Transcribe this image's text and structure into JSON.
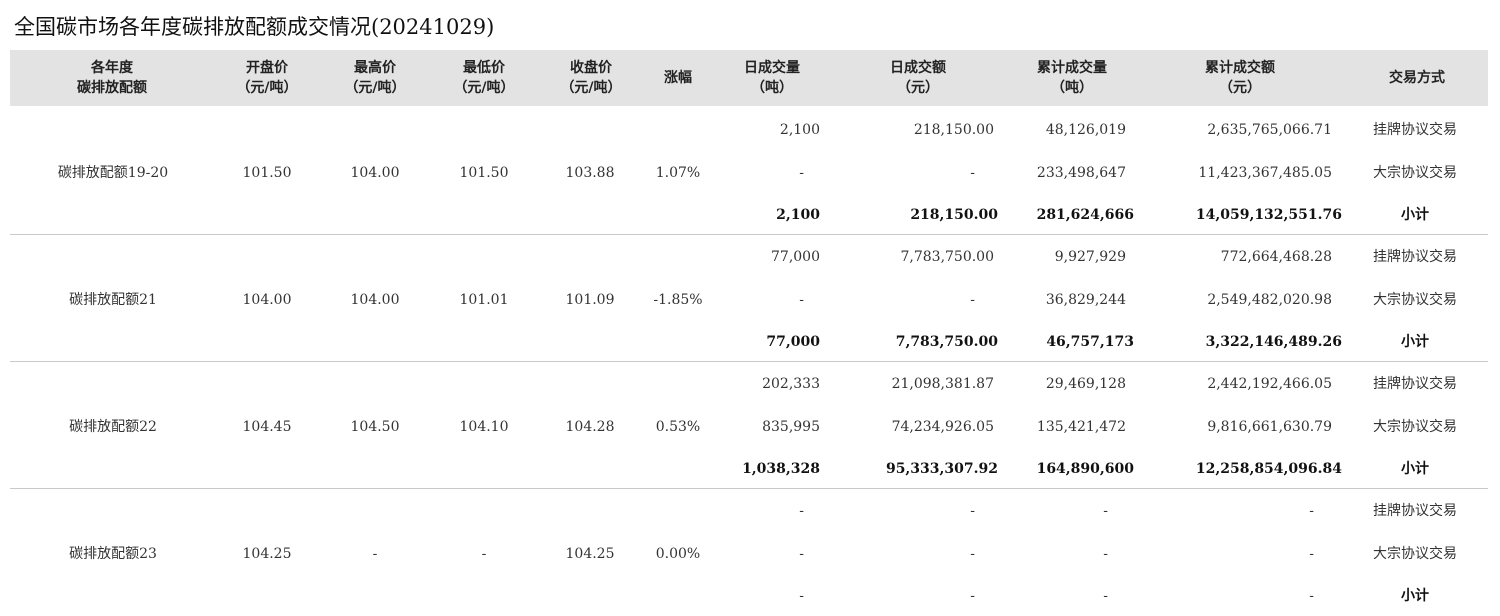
{
  "title": "全国碳市场各年度碳排放配额成交情况(20241029)",
  "columns": [
    {
      "line1": "各年度",
      "line2": "碳排放配额"
    },
    {
      "line1": "开盘价",
      "line2": "（元/吨）"
    },
    {
      "line1": "最高价",
      "line2": "（元/吨）"
    },
    {
      "line1": "最低价",
      "line2": "（元/吨）"
    },
    {
      "line1": "收盘价",
      "line2": "（元/吨）"
    },
    {
      "line1": "涨幅",
      "line2": ""
    },
    {
      "line1": "日成交量",
      "line2": "（吨）"
    },
    {
      "line1": "日成交额",
      "line2": "（元）"
    },
    {
      "line1": "累计成交量",
      "line2": "（吨）"
    },
    {
      "line1": "累计成交额",
      "line2": "（元）"
    },
    {
      "line1": "交易方式",
      "line2": ""
    }
  ],
  "groups": [
    {
      "name": "碳排放配额19-20",
      "open": "101.50",
      "high": "104.00",
      "low": "101.50",
      "close": "103.88",
      "change": "1.07%",
      "rows": [
        {
          "daily_volume": "2,100",
          "daily_amount": "218,150.00",
          "cum_volume": "48,126,019",
          "cum_amount": "2,635,765,066.71",
          "method": "挂牌协议交易"
        },
        {
          "daily_volume": "-",
          "daily_amount": "-",
          "cum_volume": "233,498,647",
          "cum_amount": "11,423,367,485.05",
          "method": "大宗协议交易"
        },
        {
          "daily_volume": "2,100",
          "daily_amount": "218,150.00",
          "cum_volume": "281,624,666",
          "cum_amount": "14,059,132,551.76",
          "method": "小计"
        }
      ]
    },
    {
      "name": "碳排放配额21",
      "open": "104.00",
      "high": "104.00",
      "low": "101.01",
      "close": "101.09",
      "change": "-1.85%",
      "rows": [
        {
          "daily_volume": "77,000",
          "daily_amount": "7,783,750.00",
          "cum_volume": "9,927,929",
          "cum_amount": "772,664,468.28",
          "method": "挂牌协议交易"
        },
        {
          "daily_volume": "-",
          "daily_amount": "-",
          "cum_volume": "36,829,244",
          "cum_amount": "2,549,482,020.98",
          "method": "大宗协议交易"
        },
        {
          "daily_volume": "77,000",
          "daily_amount": "7,783,750.00",
          "cum_volume": "46,757,173",
          "cum_amount": "3,322,146,489.26",
          "method": "小计"
        }
      ]
    },
    {
      "name": "碳排放配额22",
      "open": "104.45",
      "high": "104.50",
      "low": "104.10",
      "close": "104.28",
      "change": "0.53%",
      "rows": [
        {
          "daily_volume": "202,333",
          "daily_amount": "21,098,381.87",
          "cum_volume": "29,469,128",
          "cum_amount": "2,442,192,466.05",
          "method": "挂牌协议交易"
        },
        {
          "daily_volume": "835,995",
          "daily_amount": "74,234,926.05",
          "cum_volume": "135,421,472",
          "cum_amount": "9,816,661,630.79",
          "method": "大宗协议交易"
        },
        {
          "daily_volume": "1,038,328",
          "daily_amount": "95,333,307.92",
          "cum_volume": "164,890,600",
          "cum_amount": "12,258,854,096.84",
          "method": "小计"
        }
      ]
    },
    {
      "name": "碳排放配额23",
      "open": "104.25",
      "high": "-",
      "low": "-",
      "close": "104.25",
      "change": "0.00%",
      "rows": [
        {
          "daily_volume": "-",
          "daily_amount": "-",
          "cum_volume": "-",
          "cum_amount": "-",
          "method": "挂牌协议交易"
        },
        {
          "daily_volume": "-",
          "daily_amount": "-",
          "cum_volume": "-",
          "cum_amount": "-",
          "method": "大宗协议交易"
        },
        {
          "daily_volume": "-",
          "daily_amount": "-",
          "cum_volume": "-",
          "cum_amount": "-",
          "method": "小计"
        }
      ]
    }
  ]
}
